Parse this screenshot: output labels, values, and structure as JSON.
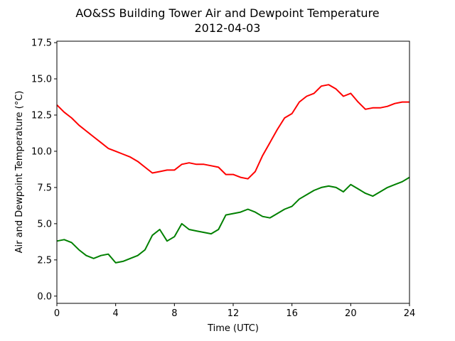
{
  "chart_data": {
    "type": "line",
    "title": "AO&SS Building Tower Air and Dewpoint Temperature",
    "subtitle": "2012-04-03",
    "xlabel": "Time (UTC)",
    "ylabel": "Air and Dewpoint Temperature (°C)",
    "xlim": [
      0,
      24
    ],
    "ylim": [
      -0.5,
      17.6
    ],
    "xticks": [
      0,
      4,
      8,
      12,
      16,
      20,
      24
    ],
    "xtick_labels": [
      "0",
      "4",
      "8",
      "12",
      "16",
      "20",
      "24"
    ],
    "yticks": [
      0.0,
      2.5,
      5.0,
      7.5,
      10.0,
      12.5,
      15.0,
      17.5
    ],
    "ytick_labels": [
      "0.0",
      "2.5",
      "5.0",
      "7.5",
      "10.0",
      "12.5",
      "15.0",
      "17.5"
    ],
    "grid": false,
    "series": [
      {
        "color": "#ff0000",
        "x": [
          0,
          0.5,
          1,
          1.5,
          2,
          2.5,
          3,
          3.5,
          4,
          4.5,
          5,
          5.5,
          6,
          6.5,
          7,
          7.5,
          8,
          8.5,
          9,
          9.5,
          10,
          10.5,
          11,
          11.5,
          12,
          12.5,
          13,
          13.5,
          14,
          14.5,
          15,
          15.5,
          16,
          16.5,
          17,
          17.5,
          18,
          18.5,
          19,
          19.5,
          20,
          20.5,
          21,
          21.5,
          22,
          22.5,
          23,
          23.5,
          24
        ],
        "y": [
          13.2,
          12.7,
          12.3,
          11.8,
          11.4,
          11.0,
          10.6,
          10.2,
          10.0,
          9.8,
          9.6,
          9.3,
          8.9,
          8.5,
          8.6,
          8.7,
          8.7,
          9.1,
          9.2,
          9.1,
          9.1,
          9.0,
          8.9,
          8.4,
          8.4,
          8.2,
          8.1,
          8.6,
          9.7,
          10.6,
          11.5,
          12.3,
          12.6,
          13.4,
          13.8,
          14.0,
          14.5,
          14.6,
          14.3,
          13.8,
          14.0,
          13.4,
          12.9,
          13.0,
          13.0,
          13.1,
          13.3,
          13.4,
          13.4
        ]
      },
      {
        "color": "#008000",
        "x": [
          0,
          0.5,
          1,
          1.5,
          2,
          2.5,
          3,
          3.5,
          4,
          4.5,
          5,
          5.5,
          6,
          6.5,
          7,
          7.5,
          8,
          8.5,
          9,
          9.5,
          10,
          10.5,
          11,
          11.5,
          12,
          12.5,
          13,
          13.5,
          14,
          14.5,
          15,
          15.5,
          16,
          16.5,
          17,
          17.5,
          18,
          18.5,
          19,
          19.5,
          20,
          20.5,
          21,
          21.5,
          22,
          22.5,
          23,
          23.5,
          24
        ],
        "y": [
          3.8,
          3.9,
          3.7,
          3.2,
          2.8,
          2.6,
          2.8,
          2.9,
          2.3,
          2.4,
          2.6,
          2.8,
          3.2,
          4.2,
          4.6,
          3.8,
          4.1,
          5.0,
          4.6,
          4.5,
          4.4,
          4.3,
          4.6,
          5.6,
          5.7,
          5.8,
          6.0,
          5.8,
          5.5,
          5.4,
          5.7,
          6.0,
          6.2,
          6.7,
          7.0,
          7.3,
          7.5,
          7.6,
          7.5,
          7.2,
          7.7,
          7.4,
          7.1,
          6.9,
          7.2,
          7.5,
          7.7,
          7.9,
          8.2
        ]
      }
    ]
  }
}
